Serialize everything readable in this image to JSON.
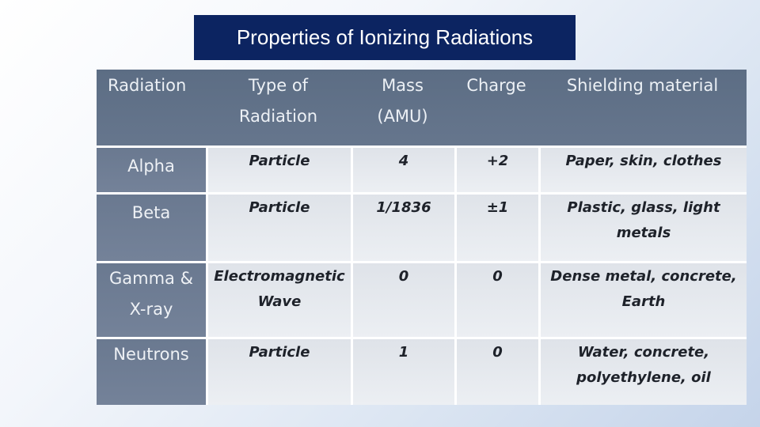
{
  "title": "Properties of Ionizing Radiations",
  "table": {
    "headers": [
      "Radiation",
      "Type of\nRadiation",
      "Mass\n(AMU)",
      "Charge",
      "Shielding material"
    ],
    "rows": [
      {
        "radiation": "Alpha",
        "type": "Particle",
        "mass": "4",
        "charge": "+2",
        "shielding": "Paper, skin, clothes"
      },
      {
        "radiation": "Beta",
        "type": "Particle",
        "mass": "1/1836",
        "charge": "±1",
        "shielding": "Plastic, glass, light\nmetals"
      },
      {
        "radiation": "Gamma &\nX-ray",
        "type": "Electromagnetic\nWave",
        "mass": "0",
        "charge": "0",
        "shielding": "Dense metal, concrete,\nEarth"
      },
      {
        "radiation": "Neutrons",
        "type": "Particle",
        "mass": "1",
        "charge": "0",
        "shielding": "Water, concrete,\npolyethylene, oil"
      }
    ]
  }
}
